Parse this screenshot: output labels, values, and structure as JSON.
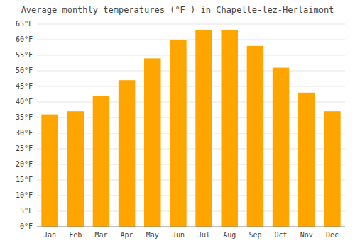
{
  "chart_data": {
    "type": "bar",
    "title": "Average monthly temperatures (°F ) in Chapelle-lez-Herlaimont",
    "categories": [
      "Jan",
      "Feb",
      "Mar",
      "Apr",
      "May",
      "Jun",
      "Jul",
      "Aug",
      "Sep",
      "Oct",
      "Nov",
      "Dec"
    ],
    "values": [
      36,
      37,
      42,
      47,
      54,
      60,
      63,
      63,
      58,
      51,
      43,
      37
    ],
    "color": "#FFA500",
    "ylim": [
      0,
      65
    ],
    "yticks": [
      {
        "value": 0,
        "label": "0°F"
      },
      {
        "value": 5,
        "label": "5°F"
      },
      {
        "value": 10,
        "label": "10°F"
      },
      {
        "value": 15,
        "label": "15°F"
      },
      {
        "value": 20,
        "label": "20°F"
      },
      {
        "value": 25,
        "label": "25°F"
      },
      {
        "value": 30,
        "label": "30°F"
      },
      {
        "value": 35,
        "label": "35°F"
      },
      {
        "value": 40,
        "label": "40°F"
      },
      {
        "value": 45,
        "label": "45°F"
      },
      {
        "value": 50,
        "label": "50°F"
      },
      {
        "value": 55,
        "label": "55°F"
      },
      {
        "value": 60,
        "label": "60°F"
      },
      {
        "value": 65,
        "label": "65°F"
      }
    ],
    "grid": true
  }
}
